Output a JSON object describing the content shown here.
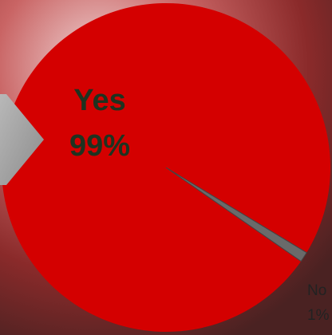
{
  "chart_data": {
    "type": "pie",
    "categories": [
      "Yes",
      "No"
    ],
    "values": [
      99,
      1
    ],
    "value_labels": [
      "99%",
      "1%"
    ],
    "colors": [
      "#d40000",
      "#6a6a6a"
    ]
  }
}
